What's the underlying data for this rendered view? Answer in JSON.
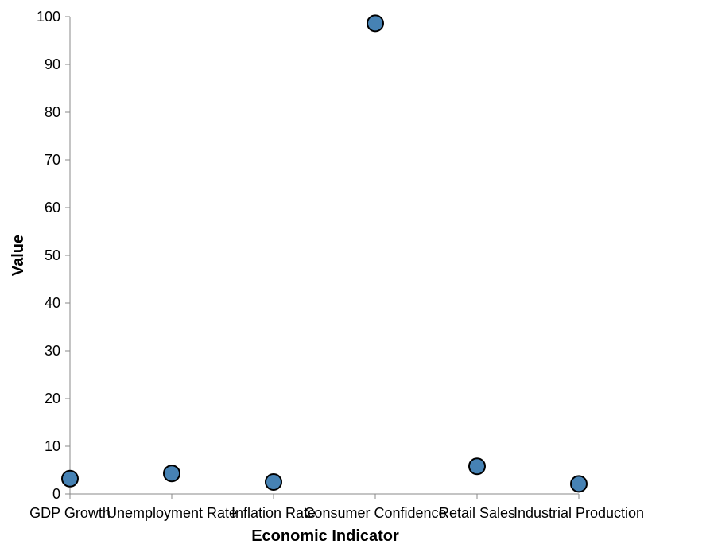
{
  "chart_data": {
    "type": "scatter",
    "title": "",
    "xlabel": "Economic Indicator",
    "ylabel": "Value",
    "categories": [
      "GDP Growth",
      "Unemployment Rate",
      "Inflation Rate",
      "Consumer Confidence",
      "Retail Sales",
      "Industrial Production"
    ],
    "values": [
      3.2,
      4.3,
      2.5,
      98.6,
      5.8,
      2.1
    ],
    "ylim": [
      0,
      100
    ],
    "yticks": [
      "0",
      "10",
      "20",
      "30",
      "40",
      "50",
      "60",
      "70",
      "80",
      "90",
      "100"
    ],
    "grid": false,
    "colors": {
      "point_fill": "#4682b4",
      "point_stroke": "#000000",
      "axis": "#888888"
    }
  }
}
